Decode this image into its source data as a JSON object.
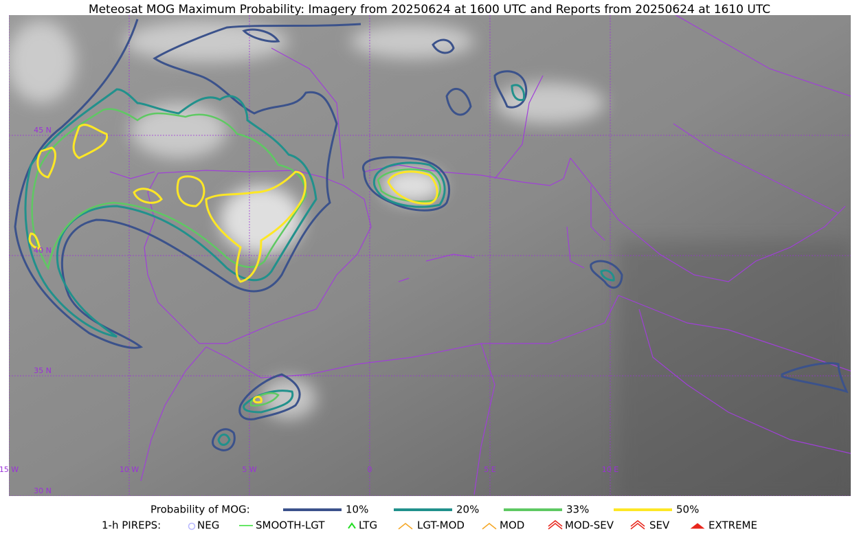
{
  "title": "Meteosat MOG Maximum Probability: Imagery from 20250624 at 1600 UTC and Reports from 20250624 at 1610 UTC",
  "graticule": {
    "lon": [
      {
        "value": -15,
        "label": "15 W"
      },
      {
        "value": -10,
        "label": "10 W"
      },
      {
        "value": -5,
        "label": "5 W"
      },
      {
        "value": 0,
        "label": "0"
      },
      {
        "value": 5,
        "label": "5 E"
      },
      {
        "value": 10,
        "label": "10 E"
      }
    ],
    "lat": [
      {
        "value": 45,
        "label": "45 N"
      },
      {
        "value": 40,
        "label": "40 N"
      },
      {
        "value": 35,
        "label": "35 N"
      },
      {
        "value": 30,
        "label": "30 N"
      }
    ]
  },
  "legend": {
    "probability_title": "Probability of MOG:",
    "probability": [
      {
        "label": "10%",
        "color": "#3b528b"
      },
      {
        "label": "20%",
        "color": "#21918c"
      },
      {
        "label": "33%",
        "color": "#5ec962"
      },
      {
        "label": "50%",
        "color": "#fde725"
      }
    ],
    "pireps_title": "1-h PIREPS:",
    "pireps": [
      {
        "label": "NEG",
        "color": "#b8b8ff"
      },
      {
        "label": "SMOOTH-LGT",
        "color": "#33dd33"
      },
      {
        "label": "LTG",
        "color": "#22dd22"
      },
      {
        "label": "LGT-MOD",
        "color": "#f5a623"
      },
      {
        "label": "MOD",
        "color": "#f5a623"
      },
      {
        "label": "MOD-SEV",
        "color": "#e8261c"
      },
      {
        "label": "SEV",
        "color": "#e8261c"
      },
      {
        "label": "EXTREME",
        "color": "#e8261c"
      }
    ]
  }
}
